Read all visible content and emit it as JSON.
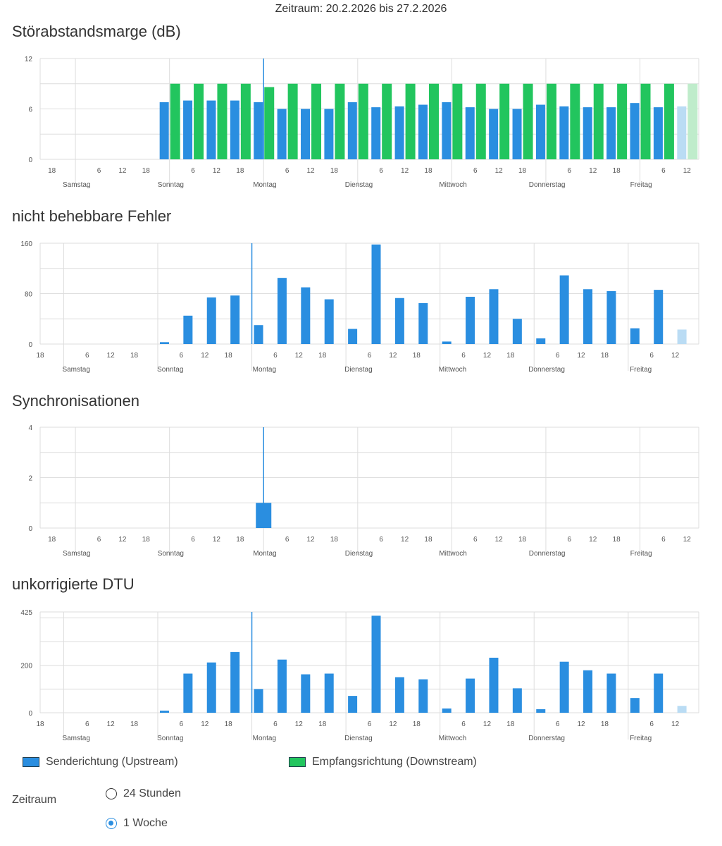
{
  "header": {
    "period": "Zeitraum: 20.2.2026 bis 27.2.2026"
  },
  "colors": {
    "upstream": "#2a8ee0",
    "downstream": "#22c55e",
    "upstream_partial": "#badcf4",
    "downstream_partial": "#bfeccb",
    "grid": "#dddddd",
    "marker": "#2a8ee0"
  },
  "day_names": [
    "Samstag",
    "Sonntag",
    "Montag",
    "Dienstag",
    "Mittwoch",
    "Donnerstag",
    "Freitag"
  ],
  "chart_data": [
    {
      "type": "bar",
      "title": "Störabstandsmarge (dB)",
      "x_unit": "hours since Samstag 00:00",
      "xlim": [
        -9,
        159
      ],
      "ylim": [
        0,
        12
      ],
      "grid_y": [
        0,
        3,
        6,
        9,
        12
      ],
      "ytick_labels": [
        "0",
        "6",
        "12"
      ],
      "marker_x": 48,
      "bar_style": "grouped",
      "x": [
        24,
        30,
        36,
        42,
        48,
        54,
        60,
        66,
        72,
        78,
        84,
        90,
        96,
        102,
        108,
        114,
        120,
        126,
        132,
        138,
        144,
        150,
        156
      ],
      "series": [
        {
          "name": "Senderichtung (Upstream)",
          "values": [
            6.8,
            7.0,
            7.0,
            7.0,
            6.8,
            6.0,
            6.0,
            6.0,
            6.8,
            6.2,
            6.3,
            6.5,
            6.8,
            6.2,
            6.0,
            6.0,
            6.5,
            6.3,
            6.2,
            6.2,
            6.7,
            6.2,
            6.3
          ]
        },
        {
          "name": "Empfangsrichtung (Downstream)",
          "values": [
            9,
            9,
            9,
            9,
            8.6,
            9,
            9,
            9,
            9,
            9,
            9,
            9,
            9,
            9,
            9,
            9,
            9,
            9,
            9,
            9,
            9,
            9,
            9
          ]
        }
      ],
      "partial_last": true
    },
    {
      "type": "bar",
      "title": "nicht behebbare Fehler",
      "x_unit": "hours since Samstag 00:00",
      "xlim": [
        -6,
        162
      ],
      "ylim": [
        0,
        160
      ],
      "grid_y": [
        0,
        40,
        80,
        120,
        160
      ],
      "ytick_labels": [
        "0",
        "80",
        "160"
      ],
      "marker_x": 48,
      "bar_style": "single",
      "x": [
        24,
        30,
        36,
        42,
        48,
        54,
        60,
        66,
        72,
        78,
        84,
        90,
        96,
        102,
        108,
        114,
        120,
        126,
        132,
        138,
        144,
        150,
        156
      ],
      "series": [
        {
          "name": "Senderichtung (Upstream)",
          "values": [
            3,
            45,
            74,
            77,
            30,
            105,
            90,
            71,
            24,
            158,
            73,
            65,
            4,
            75,
            87,
            40,
            9,
            109,
            87,
            84,
            25,
            86,
            23
          ]
        }
      ],
      "partial_last": true
    },
    {
      "type": "bar",
      "title": "Synchronisationen",
      "x_unit": "hours since Samstag 00:00",
      "xlim": [
        -9,
        159
      ],
      "ylim": [
        0,
        4
      ],
      "grid_y": [
        0,
        1,
        2,
        3,
        4
      ],
      "ytick_labels": [
        "0",
        "2",
        "4"
      ],
      "marker_x": 48,
      "bar_style": "wide",
      "x": [
        48
      ],
      "series": [
        {
          "name": "Senderichtung (Upstream)",
          "values": [
            1
          ]
        }
      ],
      "partial_last": false
    },
    {
      "type": "bar",
      "title": "unkorrigierte DTU",
      "x_unit": "hours since Samstag 00:00",
      "xlim": [
        -6,
        162
      ],
      "ylim": [
        0,
        425
      ],
      "grid_y": [
        0,
        100,
        200,
        300,
        400,
        425
      ],
      "ytick_labels": [
        "0",
        "200",
        "425"
      ],
      "marker_x": 48,
      "bar_style": "single",
      "x": [
        24,
        30,
        36,
        42,
        48,
        54,
        60,
        66,
        72,
        78,
        84,
        90,
        96,
        102,
        108,
        114,
        120,
        126,
        132,
        138,
        144,
        150,
        156
      ],
      "series": [
        {
          "name": "Senderichtung (Upstream)",
          "values": [
            9,
            165,
            212,
            256,
            100,
            224,
            162,
            165,
            71,
            409,
            150,
            141,
            18,
            144,
            232,
            103,
            15,
            215,
            179,
            165,
            62,
            165,
            29
          ]
        }
      ],
      "partial_last": true
    }
  ],
  "legend": {
    "items": [
      {
        "label": "Senderichtung (Upstream)",
        "color": "#2a8ee0"
      },
      {
        "label": "Empfangsrichtung (Downstream)",
        "color": "#22c55e"
      }
    ]
  },
  "timeframe": {
    "label": "Zeitraum",
    "options": [
      {
        "label": "24 Stunden",
        "checked": false
      },
      {
        "label": "1 Woche",
        "checked": true
      }
    ]
  }
}
